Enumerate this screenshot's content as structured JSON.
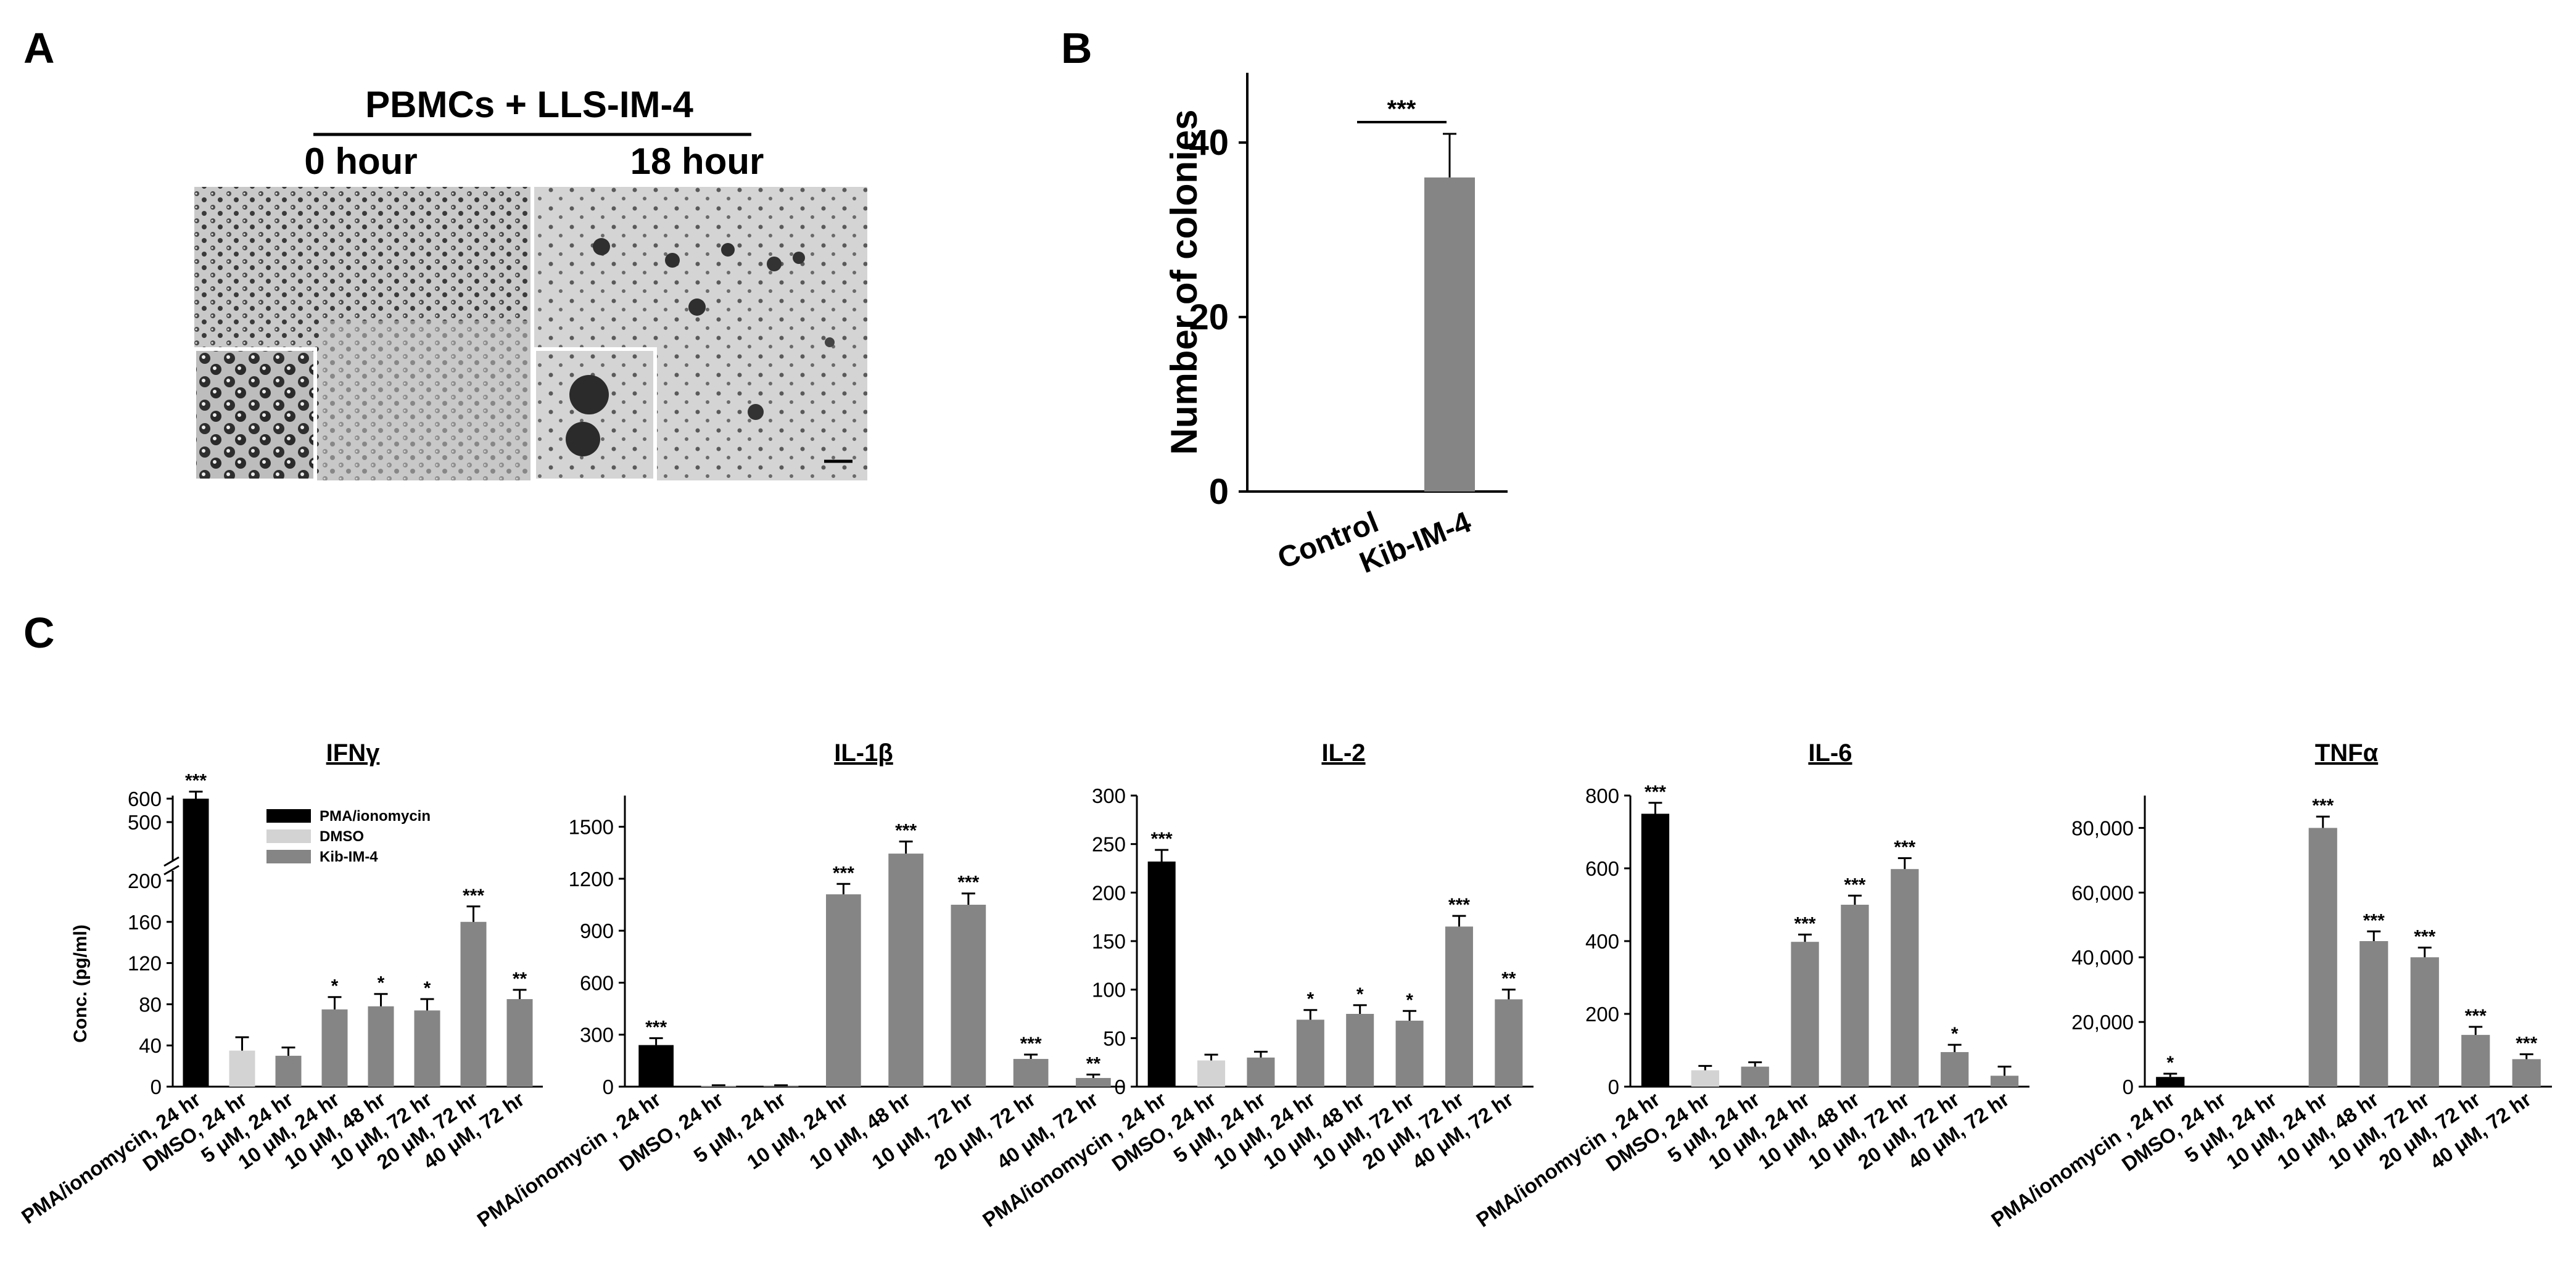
{
  "panel_labels": {
    "a": "A",
    "b": "B",
    "c": "C"
  },
  "panel_a": {
    "title": "PBMCs + LLS-IM-4",
    "left_label": "0 hour",
    "right_label": "18 hour"
  },
  "colors": {
    "pma": "#000000",
    "dmso": "#d3d3d3",
    "kib": "#858585"
  },
  "chart_data": [
    {
      "type": "bar",
      "panel": "B",
      "categories": [
        "Control",
        "Kib-IM-4"
      ],
      "values": [
        0,
        36
      ],
      "errors": [
        0,
        5
      ],
      "ylabel": "Number of colonies",
      "yticks": [
        0,
        20,
        40
      ],
      "ylim": [
        0,
        48
      ],
      "significance": [
        {
          "between": [
            "Control",
            "Kib-IM-4"
          ],
          "label": "***"
        }
      ]
    },
    {
      "type": "bar",
      "panel": "C",
      "title": "IFNγ",
      "ylabel": "Conc. (pg/ml)",
      "categories": [
        "PMA/ionomycin, 24 hr",
        "DMSO, 24 hr",
        "5 μM, 24 hr",
        "10 μM, 24 hr",
        "10 μM, 48 hr",
        "10 μM, 72 hr",
        "20 μM, 72 hr",
        "40 μM, 72 hr"
      ],
      "groups": [
        "PMA/ionomycin",
        "DMSO",
        "Kib-IM-4",
        "Kib-IM-4",
        "Kib-IM-4",
        "Kib-IM-4",
        "Kib-IM-4",
        "Kib-IM-4"
      ],
      "values": [
        600,
        35,
        30,
        75,
        78,
        74,
        160,
        85
      ],
      "errors": [
        30,
        13,
        8,
        12,
        12,
        11,
        15,
        9
      ],
      "significance": [
        "***",
        "",
        "",
        "*",
        "*",
        "*",
        "***",
        "**"
      ],
      "yticks": [
        "0",
        "40",
        "80",
        "120",
        "160",
        "200",
        "500",
        "600"
      ],
      "axis_break": true,
      "legend": [
        {
          "name": "PMA/ionomycin",
          "color": "#000000"
        },
        {
          "name": "DMSO",
          "color": "#d3d3d3"
        },
        {
          "name": "Kib-IM-4",
          "color": "#858585"
        }
      ]
    },
    {
      "type": "bar",
      "panel": "C",
      "title": "IL-1β",
      "categories": [
        "PMA/ionomycin , 24 hr",
        "DMSO, 24 hr",
        "5 μM, 24 hr",
        "10 μM, 24 hr",
        "10 μM, 48 hr",
        "10 μM, 72 hr",
        "20 μM, 72 hr",
        "40 μM, 72 hr"
      ],
      "groups": [
        "PMA/ionomycin",
        "DMSO",
        "Kib-IM-4",
        "Kib-IM-4",
        "Kib-IM-4",
        "Kib-IM-4",
        "Kib-IM-4",
        "Kib-IM-4"
      ],
      "values": [
        240,
        5,
        5,
        1110,
        1345,
        1050,
        160,
        50
      ],
      "errors": [
        40,
        3,
        3,
        60,
        70,
        65,
        25,
        20
      ],
      "significance": [
        "***",
        "",
        "",
        "***",
        "***",
        "***",
        "***",
        "**"
      ],
      "yticks": [
        0,
        300,
        600,
        900,
        1200,
        1500
      ],
      "ylim": [
        0,
        1680
      ]
    },
    {
      "type": "bar",
      "panel": "C",
      "title": "IL-2",
      "categories": [
        "PMA/ionomycin , 24 hr",
        "DMSO, 24 hr",
        "5 μM, 24 hr",
        "10 μM, 24 hr",
        "10 μM, 48 hr",
        "10 μM, 72 hr",
        "20 μM, 72 hr",
        "40 μM, 72 hr"
      ],
      "groups": [
        "PMA/ionomycin",
        "DMSO",
        "Kib-IM-4",
        "Kib-IM-4",
        "Kib-IM-4",
        "Kib-IM-4",
        "Kib-IM-4",
        "Kib-IM-4"
      ],
      "values": [
        232,
        27,
        30,
        69,
        75,
        68,
        165,
        90
      ],
      "errors": [
        12,
        6,
        6,
        10,
        9,
        10,
        11,
        10
      ],
      "significance": [
        "***",
        "",
        "",
        "*",
        "*",
        "*",
        "***",
        "**"
      ],
      "yticks": [
        0,
        50,
        100,
        150,
        200,
        250,
        300
      ],
      "ylim": [
        0,
        300
      ]
    },
    {
      "type": "bar",
      "panel": "C",
      "title": "IL-6",
      "categories": [
        "PMA/ionomycin , 24 hr",
        "DMSO, 24 hr",
        "5 μM, 24 hr",
        "10 μM, 24 hr",
        "10 μM, 48 hr",
        "10 μM, 72 hr",
        "20 μM, 72 hr",
        "40 μM, 72 hr"
      ],
      "groups": [
        "PMA/ionomycin",
        "DMSO",
        "Kib-IM-4",
        "Kib-IM-4",
        "Kib-IM-4",
        "Kib-IM-4",
        "Kib-IM-4",
        "Kib-IM-4"
      ],
      "values": [
        750,
        45,
        55,
        398,
        500,
        598,
        95,
        30
      ],
      "errors": [
        30,
        12,
        12,
        20,
        25,
        30,
        20,
        25
      ],
      "significance": [
        "***",
        "",
        "",
        "***",
        "***",
        "***",
        "*",
        ""
      ],
      "yticks": [
        0,
        200,
        400,
        600,
        800
      ],
      "ylim": [
        0,
        800
      ]
    },
    {
      "type": "bar",
      "panel": "C",
      "title": "TNFα",
      "categories": [
        "PMA/ionomycin , 24 hr",
        "DMSO, 24 hr",
        "5 μM, 24 hr",
        "10 μM, 24 hr",
        "10 μM, 48 hr",
        "10 μM, 72 hr",
        "20 μM, 72 hr",
        "40 μM, 72 hr"
      ],
      "groups": [
        "PMA/ionomycin",
        "DMSO",
        "Kib-IM-4",
        "Kib-IM-4",
        "Kib-IM-4",
        "Kib-IM-4",
        "Kib-IM-4",
        "Kib-IM-4"
      ],
      "values": [
        3000,
        0,
        0,
        80000,
        45000,
        40000,
        16000,
        8500
      ],
      "errors": [
        1000,
        0,
        0,
        3500,
        3000,
        3000,
        2500,
        1500
      ],
      "significance": [
        "*",
        "",
        "",
        "***",
        "***",
        "***",
        "***",
        "***"
      ],
      "yticks": [
        "0",
        "20,000",
        "40,000",
        "60,000",
        "80,000"
      ],
      "ylim": [
        0,
        90000
      ]
    }
  ]
}
